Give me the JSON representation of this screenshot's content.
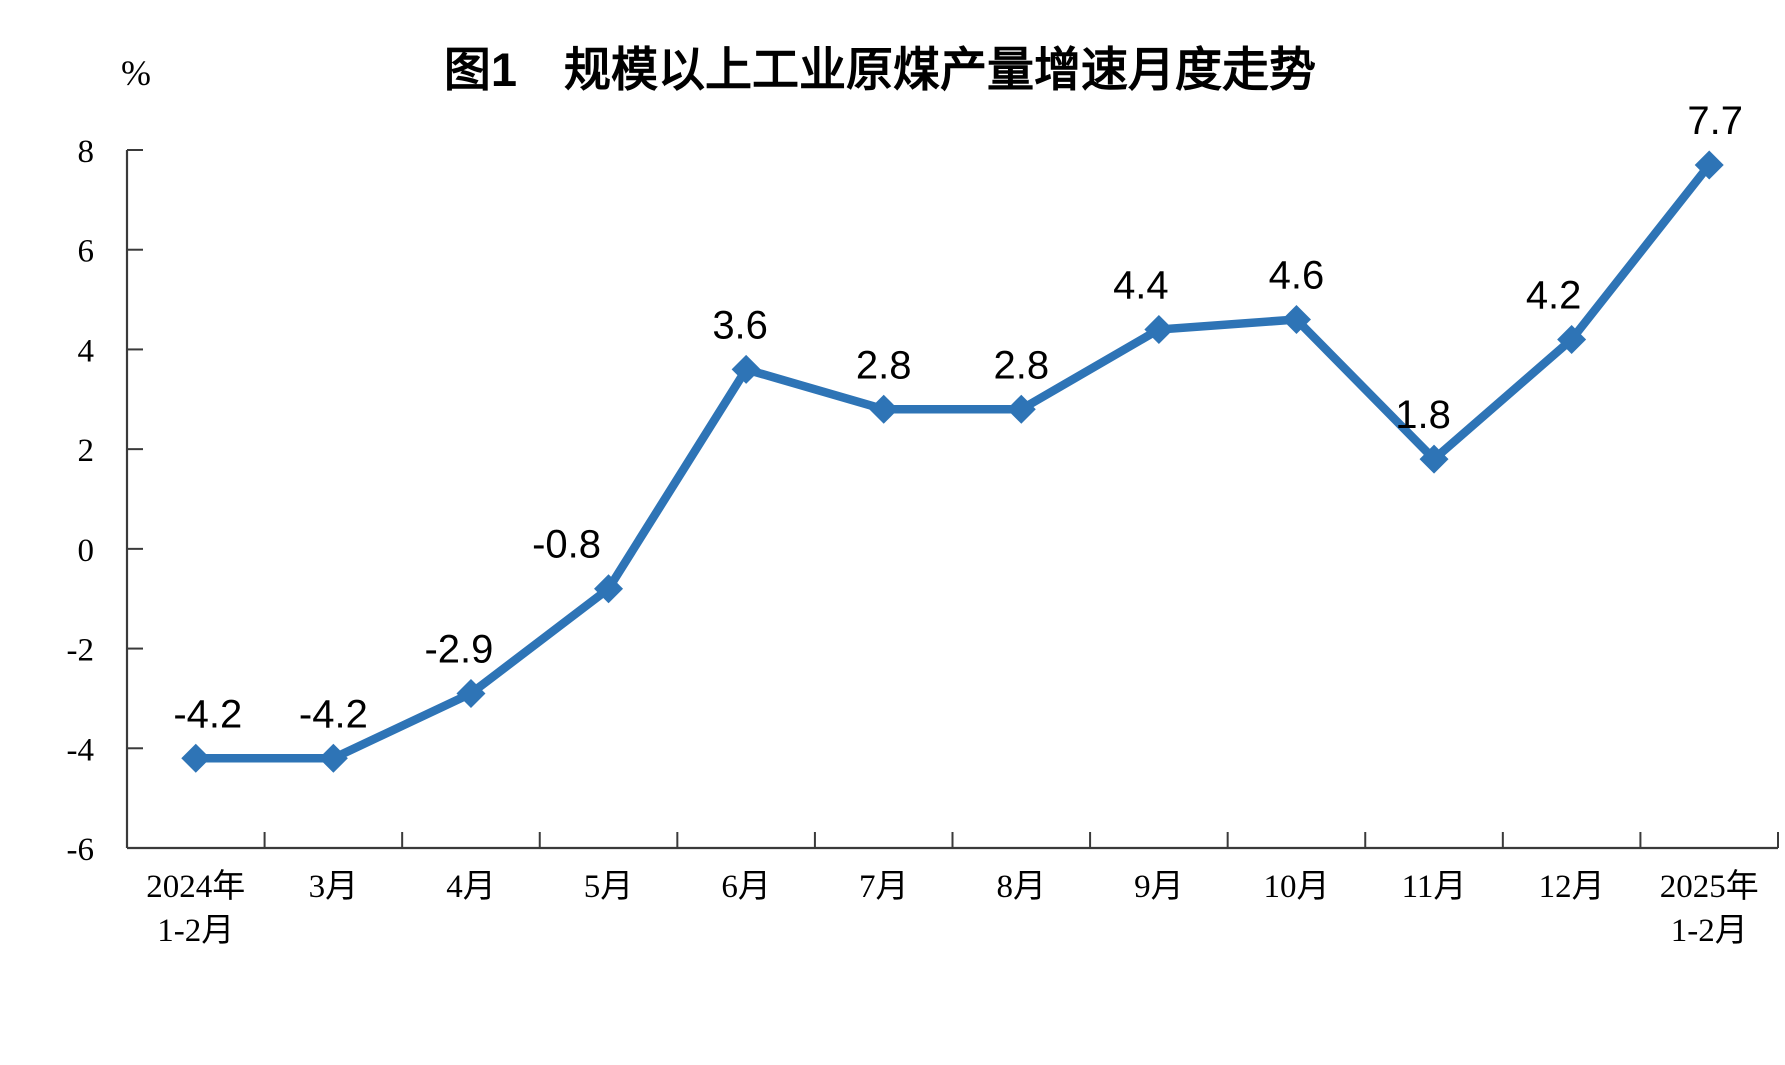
{
  "chart_data": {
    "type": "line",
    "title": "图1　规模以上工业原煤产量增速月度走势",
    "ylabel": "%",
    "xlabel": "",
    "categories": [
      "2024年\n1-2月",
      "3月",
      "4月",
      "5月",
      "6月",
      "7月",
      "8月",
      "9月",
      "10月",
      "11月",
      "12月",
      "2025年\n1-2月"
    ],
    "series": [
      {
        "name": "规模以上工业原煤产量增速",
        "values": [
          -4.2,
          -4.2,
          -2.9,
          -0.8,
          3.6,
          2.8,
          2.8,
          4.4,
          4.6,
          1.8,
          4.2,
          7.7
        ]
      }
    ],
    "values": [
      -4.2,
      -4.2,
      -2.9,
      -0.8,
      3.6,
      2.8,
      2.8,
      4.4,
      4.6,
      1.8,
      4.2,
      7.7
    ],
    "data_labels": [
      "-4.2",
      "-4.2",
      "-2.9",
      "-0.8",
      "3.6",
      "2.8",
      "2.8",
      "4.4",
      "4.6",
      "1.8",
      "4.2",
      "7.7"
    ],
    "ylim": [
      -6,
      8
    ],
    "yticks": [
      8,
      6,
      4,
      2,
      0,
      -2,
      -4,
      -6
    ],
    "grid": false,
    "legend": "none",
    "marker": "diamond",
    "line_color": "#2E74B6",
    "axis_color": "#3a3a3a",
    "text_color": "#000000",
    "label_dx": [
      12,
      0,
      -12,
      -42,
      -6,
      0,
      0,
      -18,
      0,
      -11,
      -18,
      6
    ]
  }
}
